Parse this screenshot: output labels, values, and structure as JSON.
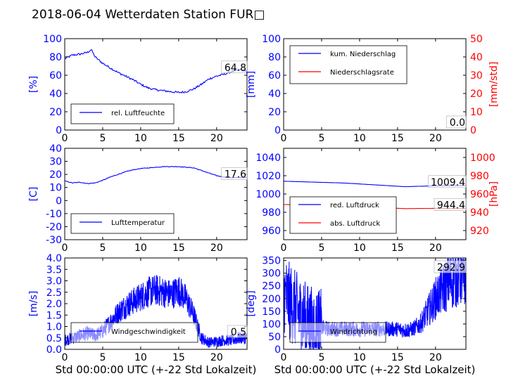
{
  "title": "2018-06-04 Wetterdaten Station FUR□",
  "colors": {
    "primary": "#0000ff",
    "secondary": "#ff0000",
    "axis": "#000000"
  },
  "chart_data": [
    {
      "type": "line",
      "ylabel": "[%]",
      "xlim": [
        0,
        24
      ],
      "ylim": [
        0,
        100
      ],
      "xticks": [
        0,
        5,
        10,
        15,
        20
      ],
      "yticks": [
        0,
        20,
        40,
        60,
        80,
        100
      ],
      "last_value_label": "64.8",
      "legend": {
        "position": "lower-center",
        "entries": [
          "rel. Luftfeuchte"
        ]
      },
      "series": [
        {
          "name": "rel. Luftfeuchte",
          "color": "#0000ff",
          "x": [
            0,
            1,
            2,
            3,
            3.5,
            4,
            5,
            6,
            7,
            8,
            9,
            10,
            11,
            12,
            13,
            14,
            15,
            16,
            17,
            18,
            19,
            20,
            21,
            22,
            23,
            24
          ],
          "y": [
            78,
            82,
            83,
            85,
            88,
            80,
            73,
            68,
            63,
            59,
            55,
            50,
            46,
            44,
            43,
            42,
            41,
            42,
            45,
            50,
            56,
            59,
            61,
            64,
            66,
            64.8
          ]
        }
      ]
    },
    {
      "type": "line",
      "ylabel": "[mm]",
      "ylabel_right": "[mm/std]",
      "xlim": [
        0,
        24
      ],
      "ylim": [
        0,
        100
      ],
      "ylim_right": [
        0,
        50
      ],
      "xticks": [
        0,
        5,
        10,
        15,
        20
      ],
      "yticks": [
        0,
        20,
        40,
        60,
        80,
        100
      ],
      "yticks_right": [
        0,
        10,
        20,
        30,
        40,
        50
      ],
      "last_value_label": "0.0",
      "legend": {
        "position": "upper-left",
        "entries": [
          "kum. Niederschlag",
          "Niederschlagsrate"
        ]
      },
      "series": [
        {
          "name": "kum. Niederschlag",
          "color": "#0000ff",
          "x": [
            0,
            24
          ],
          "y": [
            0,
            0
          ]
        },
        {
          "name": "Niederschlagsrate",
          "color": "#ff0000",
          "x": [
            0,
            24
          ],
          "y": [
            0,
            0
          ]
        }
      ]
    },
    {
      "type": "line",
      "ylabel": "[C]",
      "xlim": [
        0,
        24
      ],
      "ylim": [
        -30,
        40
      ],
      "xticks": [
        0,
        5,
        10,
        15,
        20
      ],
      "yticks": [
        -30,
        -20,
        -10,
        0,
        10,
        20,
        30,
        40
      ],
      "last_value_label": "17.6",
      "legend": {
        "position": "lower-center",
        "entries": [
          "Lufttemperatur"
        ]
      },
      "series": [
        {
          "name": "Lufttemperatur",
          "color": "#0000ff",
          "x": [
            0,
            1,
            2,
            3,
            4,
            5,
            6,
            7,
            8,
            9,
            10,
            11,
            12,
            13,
            14,
            15,
            16,
            17,
            18,
            19,
            20,
            21,
            22,
            23,
            24
          ],
          "y": [
            15,
            13.5,
            14,
            13,
            13.5,
            15.5,
            18,
            20,
            22,
            23.5,
            24.5,
            25,
            25.5,
            26,
            26,
            26,
            25.5,
            25,
            23,
            21,
            19,
            18,
            17.5,
            17.6,
            17.6
          ]
        }
      ]
    },
    {
      "type": "line",
      "ylabel": "",
      "ylabel_right": "[hPa]",
      "xlim": [
        0,
        24
      ],
      "ylim": [
        950,
        1050
      ],
      "ylim_right": [
        910,
        1010
      ],
      "xticks": [
        0,
        5,
        10,
        15,
        20
      ],
      "yticks": [
        960,
        980,
        1000,
        1020,
        1040
      ],
      "yticks_right": [
        920,
        940,
        960,
        980,
        1000
      ],
      "last_value_labels": [
        "1009.4",
        "944.4"
      ],
      "legend": {
        "position": "lower-left",
        "entries": [
          "red. Luftdruck",
          "abs. Luftdruck"
        ]
      },
      "series": [
        {
          "name": "red. Luftdruck",
          "color": "#0000ff",
          "x": [
            0,
            4,
            8,
            12,
            16,
            20,
            24
          ],
          "y": [
            1014,
            1013,
            1012,
            1010,
            1008,
            1009,
            1009.4
          ]
        },
        {
          "name": "abs. Luftdruck",
          "color": "#ff0000",
          "axis": "right",
          "x": [
            0,
            4,
            8,
            12,
            16,
            20,
            24
          ],
          "y": [
            948.5,
            947.5,
            946.5,
            945.5,
            944,
            944.3,
            944.4
          ]
        }
      ]
    },
    {
      "type": "line",
      "ylabel": "[m/s]",
      "xlabel": "Std 00:00:00 UTC (+-22 Std Lokalzeit)",
      "xlim": [
        0,
        24
      ],
      "ylim": [
        0,
        4
      ],
      "xticks": [
        0,
        5,
        10,
        15,
        20
      ],
      "yticks": [
        0.0,
        0.5,
        1.0,
        1.5,
        2.0,
        2.5,
        3.0,
        3.5,
        4.0
      ],
      "last_value_label": "0.5",
      "legend": {
        "position": "lower-center",
        "entries": [
          "Windgeschwindigkeit"
        ]
      },
      "series": [
        {
          "name": "Windgeschwindigkeit",
          "color": "#0000ff",
          "x": [
            0,
            1,
            2,
            3,
            4,
            5,
            6,
            7,
            8,
            9,
            10,
            11,
            12,
            13,
            14,
            15,
            16,
            17,
            18,
            19,
            20,
            21,
            22,
            23,
            24
          ],
          "y": [
            0.4,
            0.5,
            0.6,
            0.7,
            0.6,
            0.8,
            1.2,
            1.6,
            1.9,
            2.1,
            2.3,
            2.5,
            2.6,
            2.5,
            2.4,
            2.6,
            2.2,
            1.5,
            0.5,
            0.3,
            0.35,
            0.4,
            0.4,
            0.5,
            0.5
          ],
          "noise": 0.7
        }
      ]
    },
    {
      "type": "line",
      "ylabel": "[deg]",
      "xlabel": "Std 00:00:00 UTC (+-22 Std Lokalzeit)",
      "xlim": [
        0,
        24
      ],
      "ylim": [
        0,
        360
      ],
      "xticks": [
        0,
        5,
        10,
        15,
        20
      ],
      "yticks": [
        0,
        50,
        100,
        150,
        200,
        250,
        300,
        350
      ],
      "last_value_label": "292.9",
      "legend": {
        "position": "lower-center",
        "entries": [
          "Windrichtung"
        ]
      },
      "series": [
        {
          "name": "Windrichtung",
          "color": "#0000ff",
          "x": [
            0,
            1,
            2,
            3,
            4,
            5,
            6,
            7,
            8,
            9,
            10,
            11,
            12,
            13,
            14,
            15,
            16,
            17,
            18,
            19,
            20,
            21,
            22,
            23,
            24
          ],
          "y": [
            220,
            180,
            140,
            110,
            90,
            85,
            80,
            80,
            80,
            80,
            78,
            80,
            80,
            80,
            80,
            80,
            75,
            80,
            100,
            150,
            200,
            240,
            270,
            290,
            292.9
          ],
          "noise": 120
        }
      ]
    }
  ]
}
